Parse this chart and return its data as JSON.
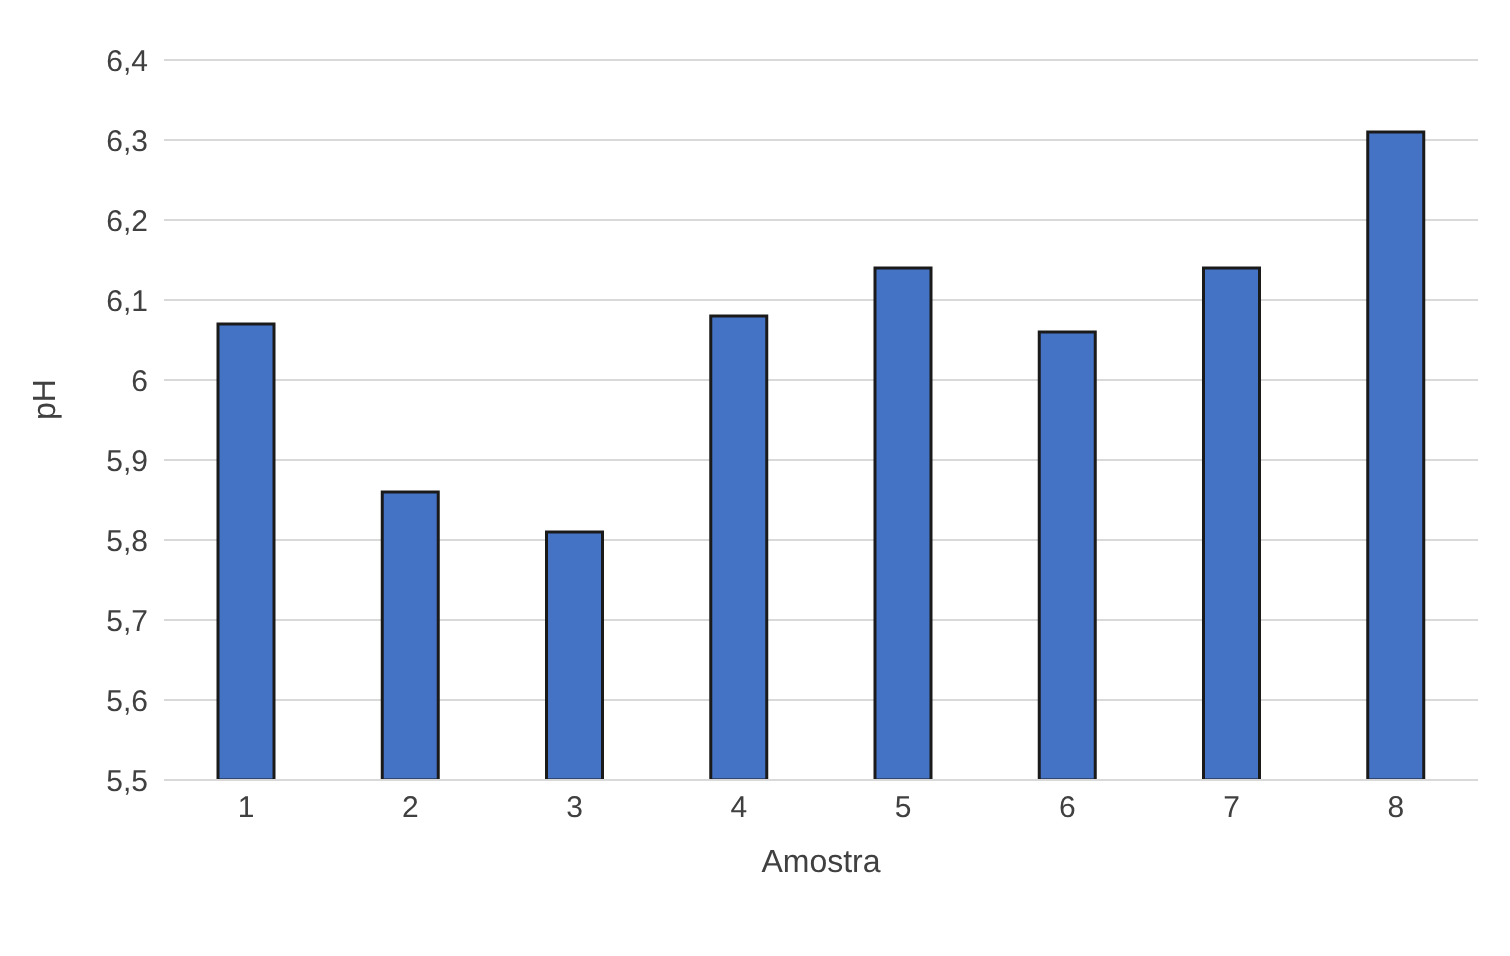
{
  "chart_data": {
    "type": "bar",
    "xlabel": "Amostra",
    "ylabel": "pH",
    "categories": [
      "1",
      "2",
      "3",
      "4",
      "5",
      "6",
      "7",
      "8"
    ],
    "values": [
      6.07,
      5.86,
      5.81,
      6.08,
      6.14,
      6.06,
      6.14,
      6.31
    ],
    "color": "#4472c4",
    "ylim": [
      5.5,
      6.4
    ],
    "yticks": [
      {
        "value": 5.5,
        "label": "5,5"
      },
      {
        "value": 5.6,
        "label": "5,6"
      },
      {
        "value": 5.7,
        "label": "5,7"
      },
      {
        "value": 5.8,
        "label": "5,8"
      },
      {
        "value": 5.9,
        "label": "5,9"
      },
      {
        "value": 6,
        "label": "6"
      },
      {
        "value": 6.1,
        "label": "6,1"
      },
      {
        "value": 6.2,
        "label": "6,2"
      },
      {
        "value": 6.3,
        "label": "6,3"
      },
      {
        "value": 6.4,
        "label": "6,4"
      }
    ],
    "grid": "y",
    "legend": false
  }
}
